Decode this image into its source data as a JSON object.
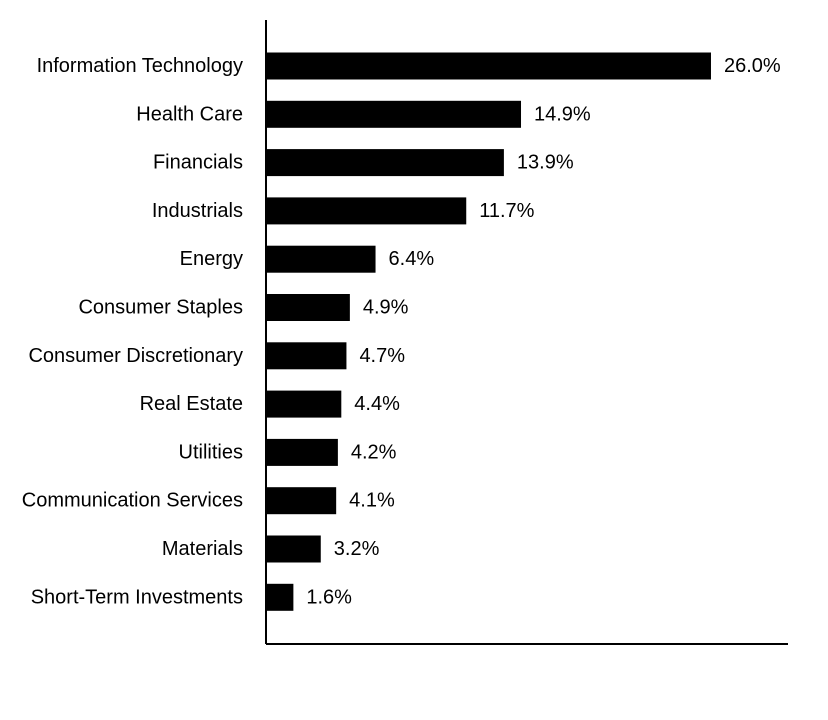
{
  "chart_data": {
    "type": "bar",
    "orientation": "horizontal",
    "title": "",
    "xlabel": "",
    "ylabel": "",
    "categories": [
      "Information Technology",
      "Health Care",
      "Financials",
      "Industrials",
      "Energy",
      "Consumer Staples",
      "Consumer Discretionary",
      "Real Estate",
      "Utilities",
      "Communication Services",
      "Materials",
      "Short-Term Investments"
    ],
    "values": [
      26.0,
      14.9,
      13.9,
      11.7,
      6.4,
      4.9,
      4.7,
      4.4,
      4.2,
      4.1,
      3.2,
      1.6
    ],
    "value_labels": [
      "26.0%",
      "14.9%",
      "13.9%",
      "11.7%",
      "6.4%",
      "4.9%",
      "4.7%",
      "4.4%",
      "4.2%",
      "4.1%",
      "3.2%",
      "1.6%"
    ],
    "unit": "%",
    "xlim": [
      0,
      30.5
    ],
    "grid": false,
    "legend": "none",
    "bar_color": "#000000",
    "axis_color": "#000000"
  }
}
